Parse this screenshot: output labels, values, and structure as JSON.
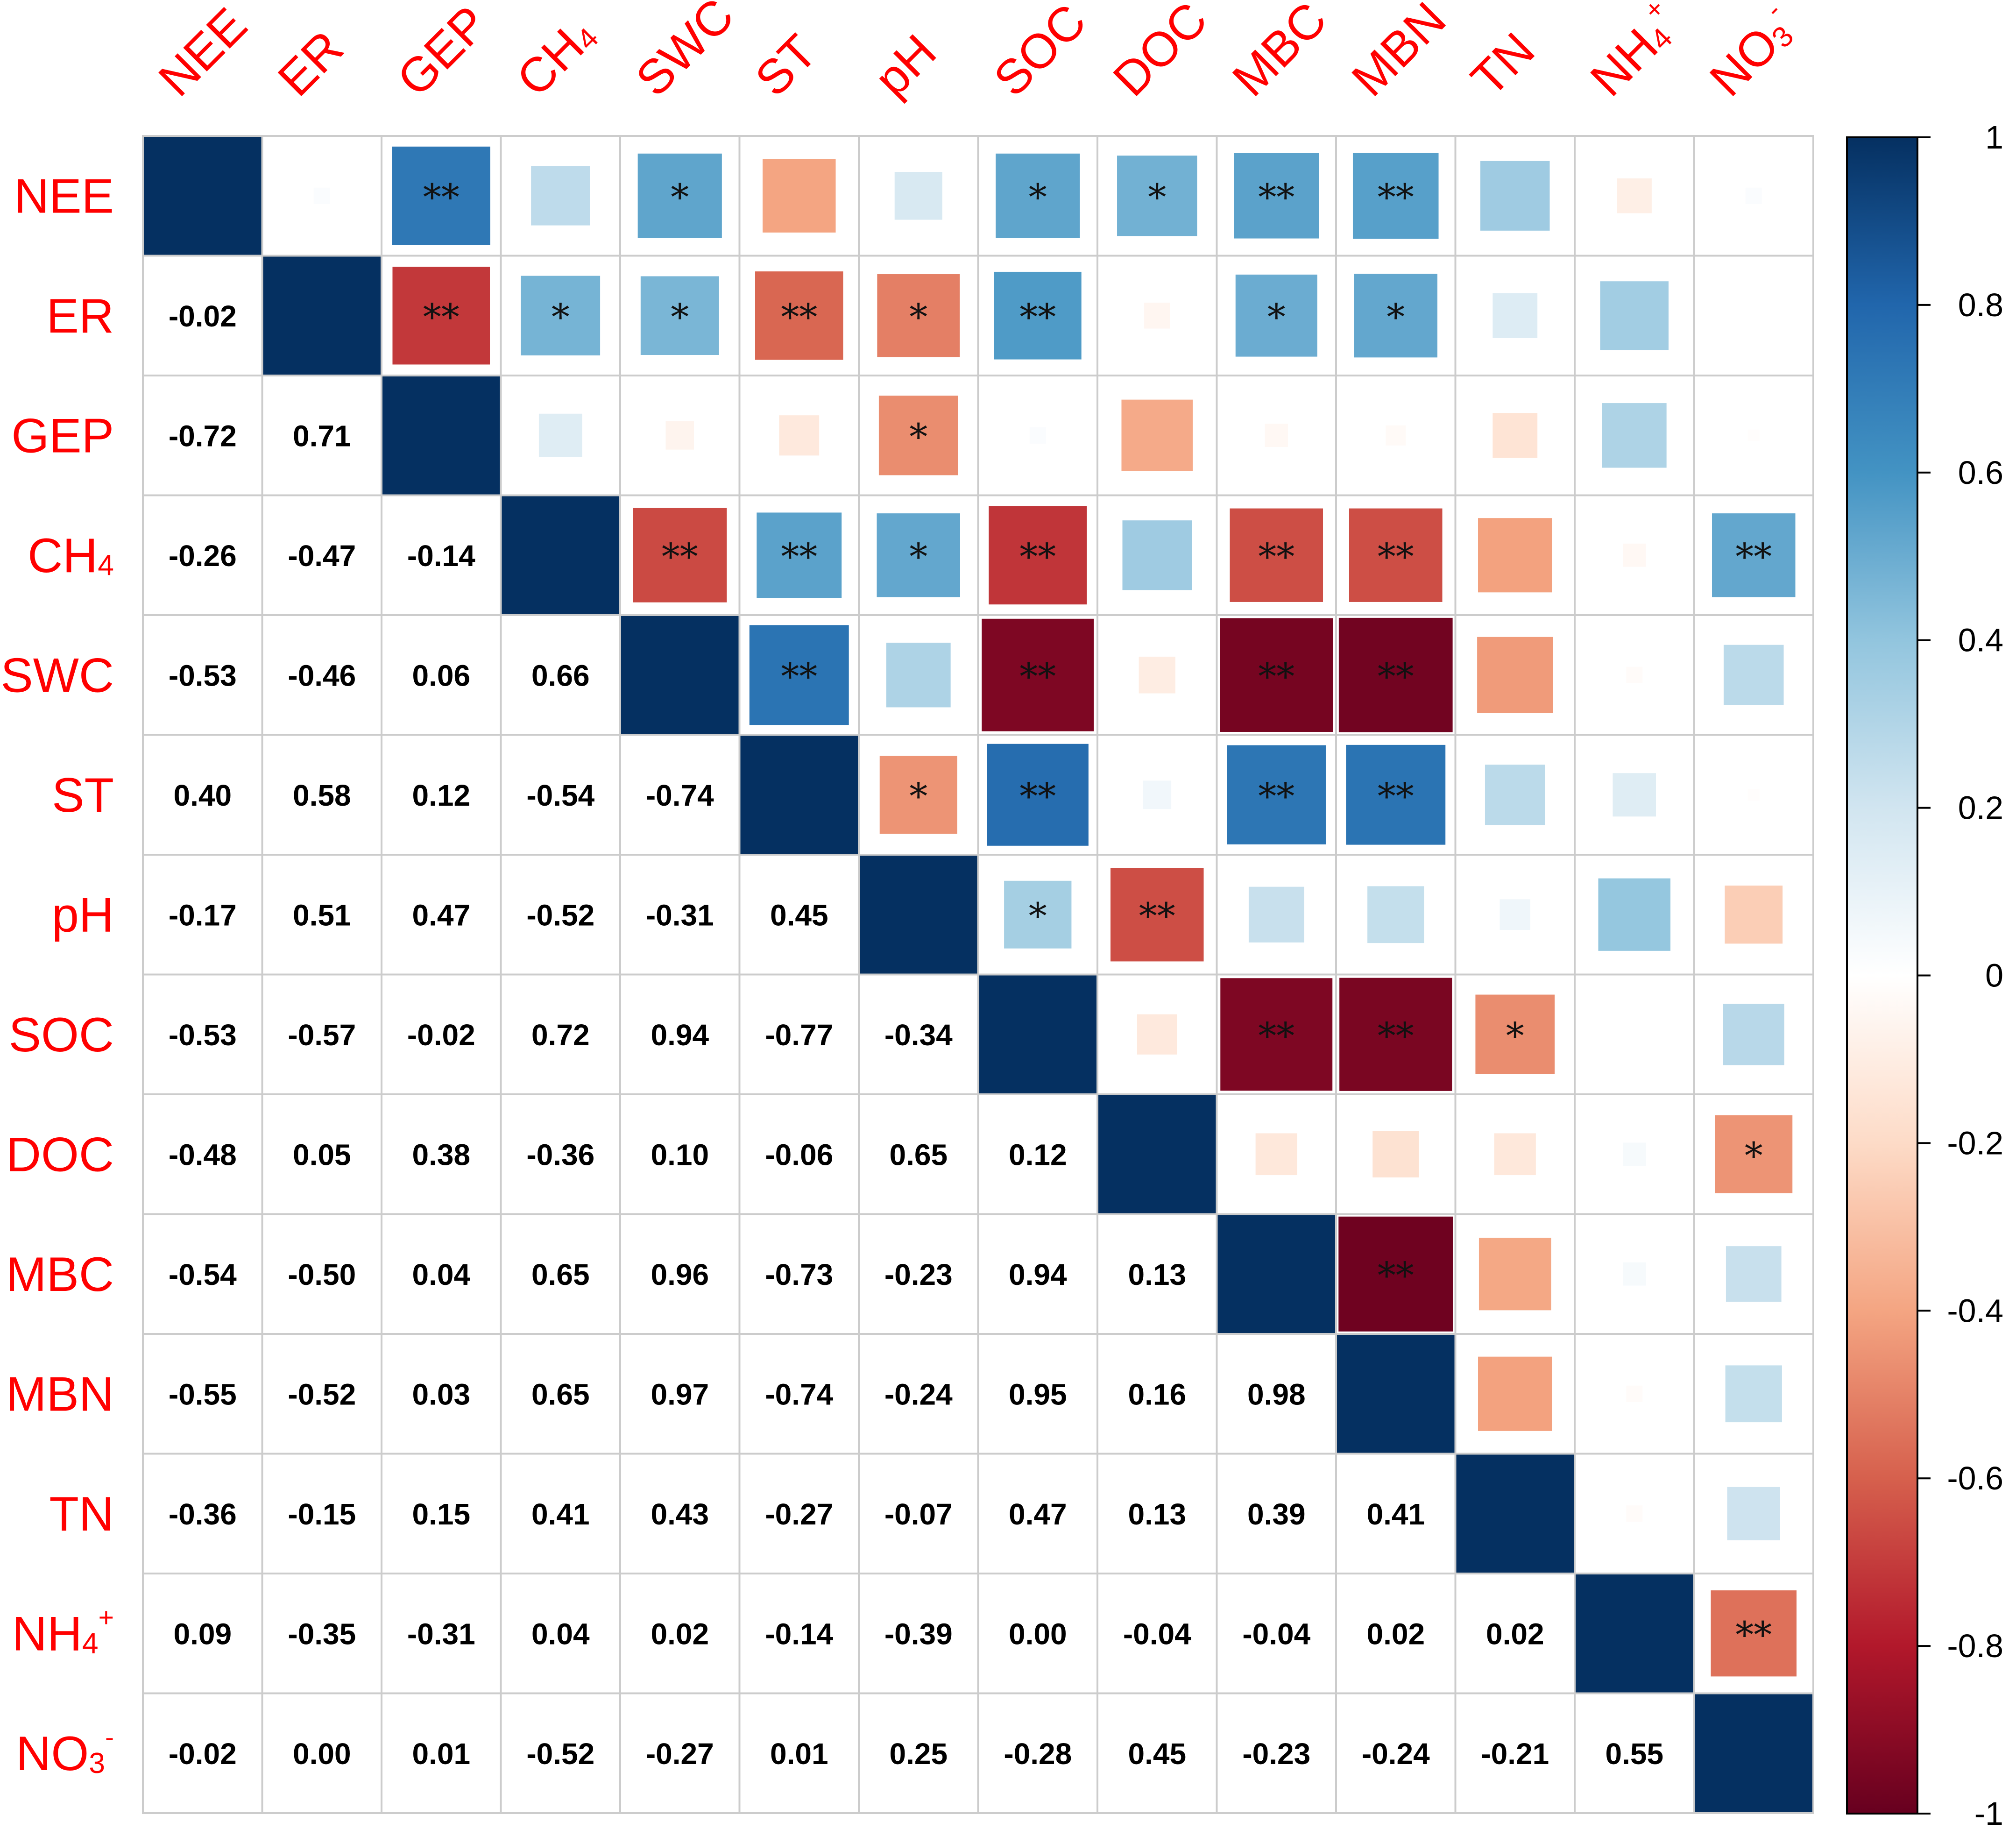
{
  "chart_data": {
    "type": "heatmap",
    "subtype": "correlation-matrix",
    "variables": [
      {
        "name": "NEE",
        "base": "NEE",
        "sub": "",
        "sup": ""
      },
      {
        "name": "ER",
        "base": "ER",
        "sub": "",
        "sup": ""
      },
      {
        "name": "GEP",
        "base": "GEP",
        "sub": "",
        "sup": ""
      },
      {
        "name": "CH4",
        "base": "CH",
        "sub": "4",
        "sup": ""
      },
      {
        "name": "SWC",
        "base": "SWC",
        "sub": "",
        "sup": ""
      },
      {
        "name": "ST",
        "base": "ST",
        "sub": "",
        "sup": ""
      },
      {
        "name": "pH",
        "base": "pH",
        "sub": "",
        "sup": ""
      },
      {
        "name": "SOC",
        "base": "SOC",
        "sub": "",
        "sup": ""
      },
      {
        "name": "DOC",
        "base": "DOC",
        "sub": "",
        "sup": ""
      },
      {
        "name": "MBC",
        "base": "MBC",
        "sub": "",
        "sup": ""
      },
      {
        "name": "MBN",
        "base": "MBN",
        "sub": "",
        "sup": ""
      },
      {
        "name": "TN",
        "base": "TN",
        "sub": "",
        "sup": ""
      },
      {
        "name": "NH4+",
        "base": "NH",
        "sub": "4",
        "sup": "+"
      },
      {
        "name": "NO3-",
        "base": "NO",
        "sub": "3",
        "sup": "-"
      }
    ],
    "lower_triangle_values": [
      [],
      [
        "-0.02"
      ],
      [
        "-0.72",
        "0.71"
      ],
      [
        "-0.26",
        "-0.47",
        "-0.14"
      ],
      [
        "-0.53",
        "-0.46",
        "0.06",
        "0.66"
      ],
      [
        "0.40",
        "0.58",
        "0.12",
        "-0.54",
        "-0.74"
      ],
      [
        "-0.17",
        "0.51",
        "0.47",
        "-0.52",
        "-0.31",
        "0.45"
      ],
      [
        "-0.53",
        "-0.57",
        "-0.02",
        "0.72",
        "0.94",
        "-0.77",
        "-0.34"
      ],
      [
        "-0.48",
        "0.05",
        "0.38",
        "-0.36",
        "0.10",
        "-0.06",
        "0.65",
        "0.12"
      ],
      [
        "-0.54",
        "-0.50",
        "0.04",
        "0.65",
        "0.96",
        "-0.73",
        "-0.23",
        "0.94",
        "0.13"
      ],
      [
        "-0.55",
        "-0.52",
        "0.03",
        "0.65",
        "0.97",
        "-0.74",
        "-0.24",
        "0.95",
        "0.16",
        "0.98"
      ],
      [
        "-0.36",
        "-0.15",
        "0.15",
        "0.41",
        "0.43",
        "-0.27",
        "-0.07",
        "0.47",
        "0.13",
        "0.39",
        "0.41"
      ],
      [
        "0.09",
        "-0.35",
        "-0.31",
        "0.04",
        "0.02",
        "-0.14",
        "-0.39",
        "0.00",
        "-0.04",
        "-0.04",
        "0.02",
        "0.02"
      ],
      [
        "-0.02",
        "0.00",
        "0.01",
        "-0.52",
        "-0.27",
        "0.01",
        "0.25",
        "-0.28",
        "0.45",
        "-0.23",
        "-0.24",
        "-0.21",
        "0.55"
      ]
    ],
    "significance": [
      [
        "",
        "",
        "**",
        "",
        "*",
        "",
        "",
        "*",
        "*",
        "**",
        "**",
        "",
        "",
        ""
      ],
      [
        "",
        "",
        "**",
        "*",
        "*",
        "**",
        "*",
        "**",
        "",
        "*",
        "*",
        "",
        "",
        ""
      ],
      [
        "",
        "",
        "",
        "",
        "",
        "",
        "*",
        "",
        "",
        "",
        "",
        "",
        "",
        ""
      ],
      [
        "",
        "",
        "",
        "",
        "**",
        "**",
        "*",
        "**",
        "",
        "**",
        "**",
        "",
        "",
        "**"
      ],
      [
        "",
        "",
        "",
        "",
        "",
        "**",
        "",
        "**",
        "",
        "**",
        "**",
        "",
        "",
        ""
      ],
      [
        "",
        "",
        "",
        "",
        "",
        "",
        "*",
        "**",
        "",
        "**",
        "**",
        "",
        "",
        ""
      ],
      [
        "",
        "",
        "",
        "",
        "",
        "",
        "",
        "*",
        "**",
        "",
        "",
        "",
        "",
        ""
      ],
      [
        "",
        "",
        "",
        "",
        "",
        "",
        "",
        "",
        "",
        "**",
        "**",
        "*",
        "",
        ""
      ],
      [
        "",
        "",
        "",
        "",
        "",
        "",
        "",
        "",
        "",
        "",
        "",
        "",
        "",
        "*"
      ],
      [
        "",
        "",
        "",
        "",
        "",
        "",
        "",
        "",
        "",
        "",
        "**",
        "",
        "",
        ""
      ],
      [
        "",
        "",
        "",
        "",
        "",
        "",
        "",
        "",
        "",
        "",
        "",
        "",
        "",
        ""
      ],
      [
        "",
        "",
        "",
        "",
        "",
        "",
        "",
        "",
        "",
        "",
        "",
        "",
        "",
        ""
      ],
      [
        "",
        "",
        "",
        "",
        "",
        "",
        "",
        "",
        "",
        "",
        "",
        "",
        "",
        "**"
      ],
      [
        "",
        "",
        "",
        "",
        "",
        "",
        "",
        "",
        "",
        "",
        "",
        "",
        "",
        ""
      ]
    ],
    "legend": {
      "placement": "right",
      "range": [
        -1,
        1
      ],
      "tick_labels": [
        "1",
        "0.8",
        "0.6",
        "0.4",
        "0.2",
        "0",
        "-0.2",
        "-0.4",
        "-0.6",
        "-0.8",
        "-1"
      ],
      "colors": [
        "#67001F",
        "#B2182B",
        "#D6604D",
        "#F4A582",
        "#FDDBC7",
        "#FFFFFF",
        "#D1E5F0",
        "#92C5DE",
        "#4393C3",
        "#2166AC",
        "#053061"
      ]
    },
    "colors": {
      "label": "#ff0000",
      "grid": "#cccccc",
      "value_text": "#000000"
    }
  }
}
